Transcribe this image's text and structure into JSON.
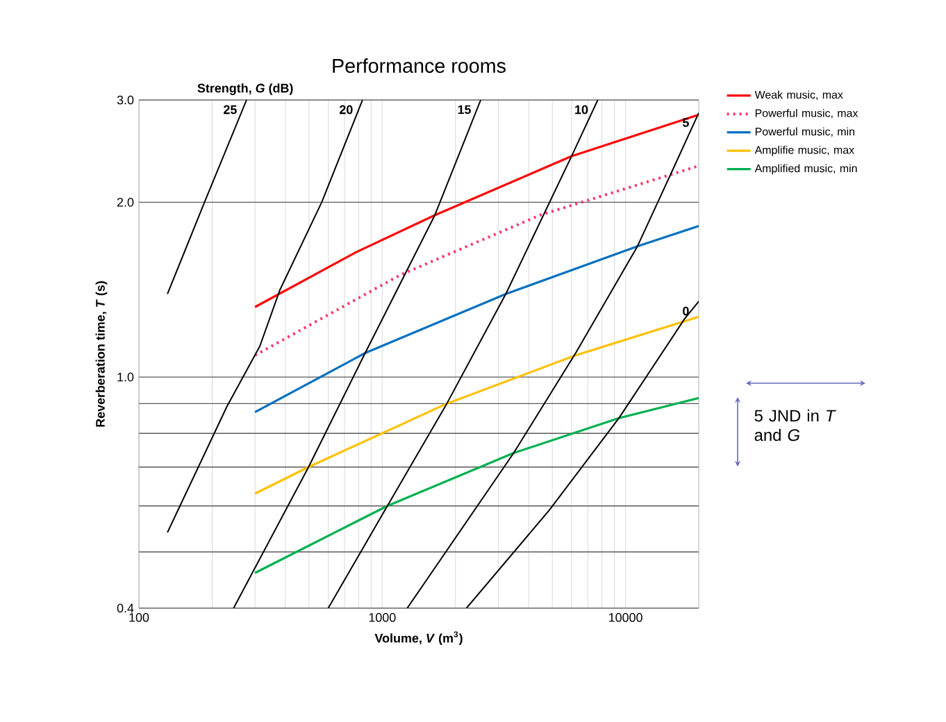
{
  "chart_data": {
    "type": "line",
    "title": "Performance rooms",
    "xlabel": "Volume, *V* (m$^{3}$)",
    "ylabel": "Reverberation time, *T* (s)",
    "log": "xy",
    "grid": true,
    "legend": "right",
    "xlim": [
      100,
      20000
    ],
    "ylim": [
      0.4,
      3.0
    ],
    "xticks": [
      100,
      {
        "value": 200,
        "label": null
      },
      {
        "value": 300,
        "label": null
      },
      {
        "value": 400,
        "label": null
      },
      {
        "value": 500,
        "label": null
      },
      {
        "value": 600,
        "label": null
      },
      {
        "value": 700,
        "label": null
      },
      {
        "value": 800,
        "label": null
      },
      {
        "value": 900,
        "label": null
      },
      1000,
      {
        "value": 2000,
        "label": null
      },
      {
        "value": 3000,
        "label": null
      },
      {
        "value": 4000,
        "label": null
      },
      {
        "value": 5000,
        "label": null
      },
      {
        "value": 6000,
        "label": null
      },
      {
        "value": 7000,
        "label": null
      },
      {
        "value": 8000,
        "label": null
      },
      {
        "value": 9000,
        "label": null
      },
      10000
    ],
    "yticks": [
      0.4,
      {
        "value": 0.5,
        "label": null
      },
      {
        "value": 0.6,
        "label": null
      },
      {
        "value": 0.7,
        "label": null
      },
      {
        "value": 0.8,
        "label": null
      },
      {
        "value": 0.9,
        "label": null
      },
      {
        "value": 1.0,
        "label": "1.0"
      },
      {
        "value": 2.0,
        "label": "2.0"
      },
      {
        "value": 3.0,
        "label": "3.0"
      }
    ],
    "annotations": [
      "Strength, *G* (dB)",
      "5 JND in *T* and *G*"
    ],
    "series": [
      {
        "name": "Weak music, max",
        "color": "#ff0000",
        "x": [
          300,
          780,
          1645,
          6000,
          20000
        ],
        "values": [
          1.32,
          1.64,
          1.9,
          2.4,
          2.83
        ]
      },
      {
        "name": "Powerful music, max",
        "color": "#ff3366",
        "line_style": "dotted",
        "x": [
          300,
          1190,
          4450,
          20000
        ],
        "values": [
          1.09,
          1.5,
          1.9,
          2.31
        ]
      },
      {
        "name": "Powerful music, min",
        "color": "#0070c0",
        "x": [
          300,
          851,
          3220,
          11200,
          20000
        ],
        "values": [
          0.87,
          1.1,
          1.39,
          1.68,
          1.82
        ]
      },
      {
        "name": "Amplifie music, max",
        "color": "#ffc000",
        "x": [
          300,
          498,
          1843,
          6240,
          20000
        ],
        "values": [
          0.63,
          0.7,
          0.9,
          1.09,
          1.27
        ]
      },
      {
        "name": "Amplified music, min",
        "color": "#00b050",
        "x": [
          300,
          1050,
          3470,
          9400,
          20000
        ],
        "values": [
          0.46,
          0.6,
          0.74,
          0.85,
          0.92
        ]
      },
      {
        "name": "25",
        "color": "#000000",
        "x": [
          131,
          186,
          277
        ],
        "values": [
          1.39,
          2.0,
          3.0
        ]
      },
      {
        "name": "20",
        "color": "#000000",
        "x": [
          131,
          230,
          314,
          379,
          564,
          830
        ],
        "values": [
          0.54,
          0.89,
          1.13,
          1.41,
          2.0,
          3.0
        ]
      },
      {
        "name": "15",
        "color": "#000000",
        "x": [
          245,
          498,
          851,
          1645,
          2540
        ],
        "values": [
          0.4,
          0.7,
          1.1,
          1.9,
          3.0
        ]
      },
      {
        "name": "10",
        "color": "#000000",
        "x": [
          600,
          1050,
          1843,
          3220,
          6000,
          7690
        ],
        "values": [
          0.4,
          0.6,
          0.9,
          1.39,
          2.4,
          3.0
        ]
      },
      {
        "name": "5",
        "color": "#000000",
        "x": [
          1267,
          3470,
          6240,
          11200,
          15450,
          20000
        ],
        "values": [
          0.4,
          0.74,
          1.1,
          1.68,
          2.25,
          2.85
        ]
      },
      {
        "name": "0",
        "color": "#000000",
        "x": [
          2220,
          4860,
          9400,
          17500,
          20000
        ],
        "values": [
          0.4,
          0.59,
          0.85,
          1.26,
          1.35
        ]
      }
    ]
  }
}
